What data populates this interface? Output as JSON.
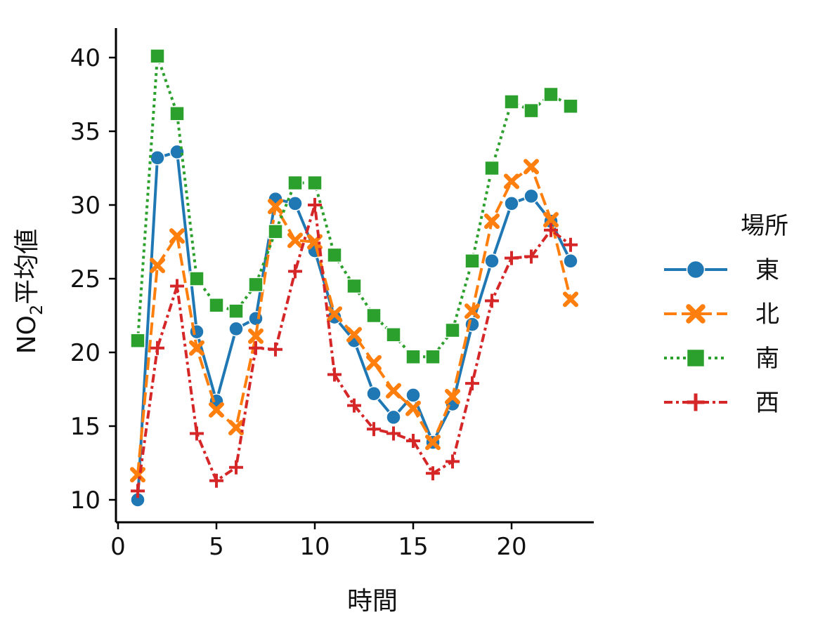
{
  "chart_data": {
    "type": "line",
    "xlabel": "時間",
    "ylabel_main": "NO",
    "ylabel_sub": "2",
    "ylabel_rest": "平均値",
    "xlim": [
      0,
      24
    ],
    "ylim": [
      9,
      42
    ],
    "xticks": [
      0,
      5,
      10,
      15,
      20
    ],
    "yticks": [
      10,
      15,
      20,
      25,
      30,
      35,
      40
    ],
    "grid": false,
    "legend_placement": "right",
    "legend_title": "場所",
    "x": [
      1,
      2,
      3,
      4,
      5,
      6,
      7,
      8,
      9,
      10,
      11,
      12,
      13,
      14,
      15,
      16,
      17,
      18,
      19,
      20,
      21,
      22,
      23
    ],
    "series": [
      {
        "name": "東",
        "color": "#1f77b4",
        "dash": "solid",
        "marker": "circle",
        "values": [
          10.0,
          33.2,
          33.6,
          21.4,
          16.7,
          21.6,
          22.3,
          30.4,
          30.1,
          26.9,
          22.4,
          20.8,
          17.2,
          15.6,
          17.1,
          13.9,
          16.5,
          21.9,
          26.2,
          30.1,
          30.6,
          28.9,
          26.2
        ]
      },
      {
        "name": "北",
        "color": "#ff7f0e",
        "dash": "dashed",
        "marker": "x",
        "values": [
          11.7,
          25.9,
          27.9,
          20.3,
          16.1,
          14.9,
          21.1,
          29.9,
          27.6,
          27.5,
          22.6,
          21.2,
          19.3,
          17.4,
          16.2,
          13.9,
          17.0,
          22.8,
          28.9,
          31.6,
          32.6,
          29.0,
          23.6
        ]
      },
      {
        "name": "南",
        "color": "#2ca02c",
        "dash": "dotted",
        "marker": "square",
        "values": [
          20.8,
          40.1,
          36.2,
          25.0,
          23.2,
          22.8,
          24.6,
          28.2,
          31.5,
          31.5,
          26.6,
          24.5,
          22.5,
          21.2,
          19.7,
          19.7,
          21.5,
          26.2,
          32.5,
          37.0,
          36.4,
          37.5,
          36.7
        ]
      },
      {
        "name": "西",
        "color": "#d62728",
        "dash": "dashdot",
        "marker": "plus",
        "values": [
          10.6,
          20.3,
          24.5,
          14.5,
          11.3,
          12.2,
          20.3,
          20.2,
          25.5,
          30.0,
          18.5,
          16.4,
          14.8,
          14.5,
          14.0,
          11.8,
          12.6,
          17.9,
          23.5,
          26.4,
          26.5,
          28.3,
          27.3
        ]
      }
    ]
  }
}
